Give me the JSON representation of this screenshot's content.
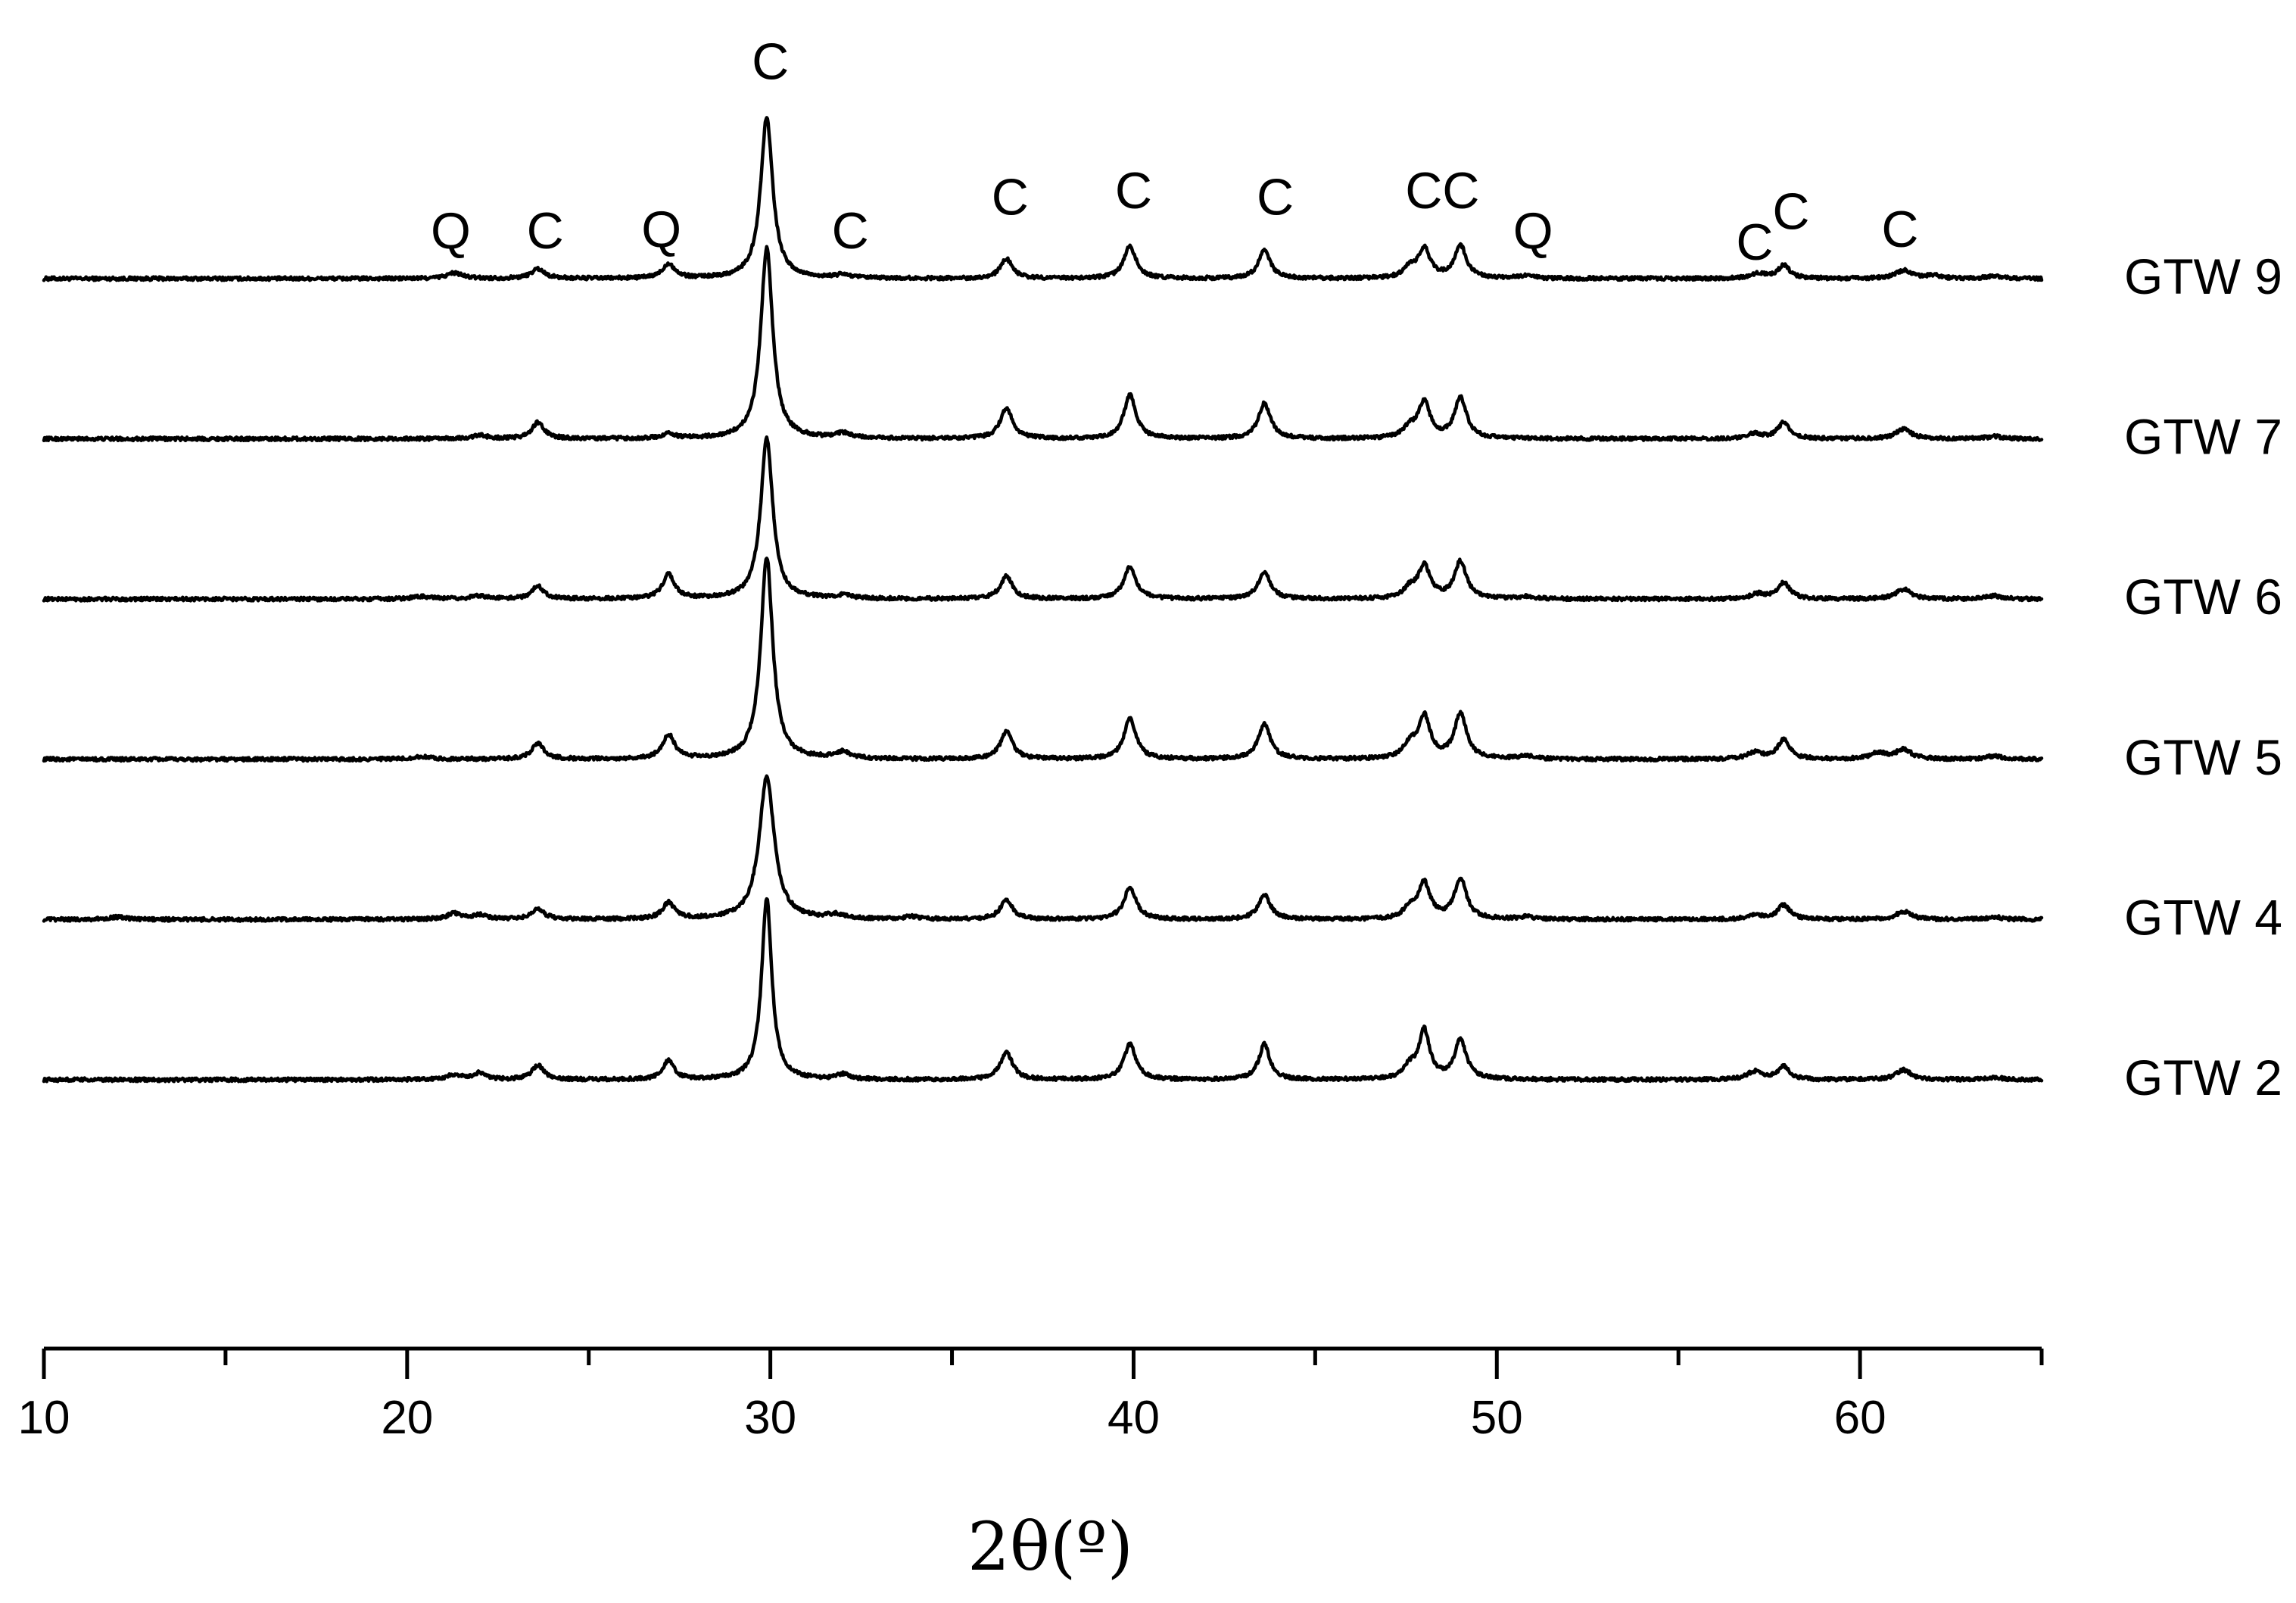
{
  "chart_data": {
    "type": "line",
    "xlabel": "2θ(º)",
    "ylabel": "",
    "title": "",
    "xlim": [
      10,
      65
    ],
    "x_ticks": [
      10,
      20,
      30,
      40,
      50,
      60
    ],
    "y_axis_visible": false,
    "grid": false,
    "legend": "none",
    "line_color": "#000000",
    "series": [
      {
        "name": "GTW 9",
        "baseline": 0,
        "peaks": [
          {
            "x": 21.3,
            "h": 0.035,
            "w": 0.25
          },
          {
            "x": 23.6,
            "h": 0.06,
            "w": 0.22
          },
          {
            "x": 27.2,
            "h": 0.09,
            "w": 0.2
          },
          {
            "x": 29.9,
            "h": 1.0,
            "w": 0.2
          },
          {
            "x": 32.0,
            "h": 0.02,
            "w": 0.25
          },
          {
            "x": 36.5,
            "h": 0.12,
            "w": 0.2
          },
          {
            "x": 39.9,
            "h": 0.2,
            "w": 0.2
          },
          {
            "x": 43.6,
            "h": 0.17,
            "w": 0.2
          },
          {
            "x": 47.6,
            "h": 0.06,
            "w": 0.2
          },
          {
            "x": 48.0,
            "h": 0.18,
            "w": 0.2
          },
          {
            "x": 49.0,
            "h": 0.2,
            "w": 0.2
          },
          {
            "x": 50.8,
            "h": 0.015,
            "w": 0.25
          },
          {
            "x": 57.2,
            "h": 0.03,
            "w": 0.25
          },
          {
            "x": 57.9,
            "h": 0.08,
            "w": 0.2
          },
          {
            "x": 61.2,
            "h": 0.05,
            "w": 0.25
          },
          {
            "x": 62.0,
            "h": 0.02,
            "w": 0.25
          },
          {
            "x": 63.7,
            "h": 0.015,
            "w": 0.25
          }
        ]
      },
      {
        "name": "GTW 7",
        "baseline": 1,
        "peaks": [
          {
            "x": 22.0,
            "h": 0.02,
            "w": 0.25
          },
          {
            "x": 23.6,
            "h": 0.1,
            "w": 0.2
          },
          {
            "x": 27.2,
            "h": 0.03,
            "w": 0.2
          },
          {
            "x": 29.9,
            "h": 1.18,
            "w": 0.2
          },
          {
            "x": 32.0,
            "h": 0.03,
            "w": 0.25
          },
          {
            "x": 36.5,
            "h": 0.19,
            "w": 0.2
          },
          {
            "x": 39.9,
            "h": 0.27,
            "w": 0.2
          },
          {
            "x": 43.6,
            "h": 0.22,
            "w": 0.2
          },
          {
            "x": 47.6,
            "h": 0.06,
            "w": 0.2
          },
          {
            "x": 48.0,
            "h": 0.22,
            "w": 0.2
          },
          {
            "x": 49.0,
            "h": 0.25,
            "w": 0.2
          },
          {
            "x": 57.1,
            "h": 0.03,
            "w": 0.25
          },
          {
            "x": 57.9,
            "h": 0.1,
            "w": 0.2
          },
          {
            "x": 61.2,
            "h": 0.06,
            "w": 0.25
          },
          {
            "x": 63.7,
            "h": 0.015,
            "w": 0.25
          }
        ]
      },
      {
        "name": "GTW 6",
        "baseline": 2,
        "peaks": [
          {
            "x": 20.4,
            "h": 0.015,
            "w": 0.3
          },
          {
            "x": 22.0,
            "h": 0.02,
            "w": 0.25
          },
          {
            "x": 23.6,
            "h": 0.08,
            "w": 0.2
          },
          {
            "x": 27.2,
            "h": 0.15,
            "w": 0.2
          },
          {
            "x": 29.9,
            "h": 1.0,
            "w": 0.2
          },
          {
            "x": 32.0,
            "h": 0.02,
            "w": 0.25
          },
          {
            "x": 36.5,
            "h": 0.14,
            "w": 0.2
          },
          {
            "x": 39.9,
            "h": 0.2,
            "w": 0.2
          },
          {
            "x": 43.6,
            "h": 0.17,
            "w": 0.2
          },
          {
            "x": 47.6,
            "h": 0.06,
            "w": 0.2
          },
          {
            "x": 48.0,
            "h": 0.2,
            "w": 0.2
          },
          {
            "x": 49.0,
            "h": 0.23,
            "w": 0.2
          },
          {
            "x": 50.8,
            "h": 0.015,
            "w": 0.25
          },
          {
            "x": 57.2,
            "h": 0.03,
            "w": 0.25
          },
          {
            "x": 57.9,
            "h": 0.1,
            "w": 0.2
          },
          {
            "x": 61.2,
            "h": 0.06,
            "w": 0.25
          },
          {
            "x": 63.7,
            "h": 0.02,
            "w": 0.25
          }
        ]
      },
      {
        "name": "GTW 5",
        "baseline": 3,
        "peaks": [
          {
            "x": 20.4,
            "h": 0.015,
            "w": 0.3
          },
          {
            "x": 23.6,
            "h": 0.1,
            "w": 0.2
          },
          {
            "x": 27.2,
            "h": 0.15,
            "w": 0.2
          },
          {
            "x": 29.9,
            "h": 1.25,
            "w": 0.2
          },
          {
            "x": 32.0,
            "h": 0.04,
            "w": 0.25
          },
          {
            "x": 36.5,
            "h": 0.17,
            "w": 0.2
          },
          {
            "x": 39.9,
            "h": 0.25,
            "w": 0.2
          },
          {
            "x": 43.6,
            "h": 0.22,
            "w": 0.2
          },
          {
            "x": 47.6,
            "h": 0.08,
            "w": 0.2
          },
          {
            "x": 48.0,
            "h": 0.26,
            "w": 0.2
          },
          {
            "x": 49.0,
            "h": 0.28,
            "w": 0.2
          },
          {
            "x": 50.8,
            "h": 0.02,
            "w": 0.25
          },
          {
            "x": 57.1,
            "h": 0.04,
            "w": 0.25
          },
          {
            "x": 57.9,
            "h": 0.12,
            "w": 0.2
          },
          {
            "x": 60.5,
            "h": 0.04,
            "w": 0.25
          },
          {
            "x": 61.2,
            "h": 0.06,
            "w": 0.25
          },
          {
            "x": 63.7,
            "h": 0.02,
            "w": 0.25
          }
        ]
      },
      {
        "name": "GTW 4",
        "baseline": 4,
        "peaks": [
          {
            "x": 12.0,
            "h": 0.015,
            "w": 0.3
          },
          {
            "x": 21.3,
            "h": 0.035,
            "w": 0.25
          },
          {
            "x": 22.0,
            "h": 0.025,
            "w": 0.25
          },
          {
            "x": 23.6,
            "h": 0.06,
            "w": 0.22
          },
          {
            "x": 27.2,
            "h": 0.1,
            "w": 0.2
          },
          {
            "x": 29.9,
            "h": 0.88,
            "w": 0.25
          },
          {
            "x": 31.8,
            "h": 0.025,
            "w": 0.25
          },
          {
            "x": 33.9,
            "h": 0.015,
            "w": 0.25
          },
          {
            "x": 36.5,
            "h": 0.12,
            "w": 0.2
          },
          {
            "x": 39.9,
            "h": 0.2,
            "w": 0.2
          },
          {
            "x": 43.6,
            "h": 0.15,
            "w": 0.2
          },
          {
            "x": 47.6,
            "h": 0.06,
            "w": 0.2
          },
          {
            "x": 48.0,
            "h": 0.22,
            "w": 0.2
          },
          {
            "x": 49.0,
            "h": 0.25,
            "w": 0.2
          },
          {
            "x": 50.8,
            "h": 0.015,
            "w": 0.25
          },
          {
            "x": 57.1,
            "h": 0.025,
            "w": 0.25
          },
          {
            "x": 57.9,
            "h": 0.09,
            "w": 0.2
          },
          {
            "x": 61.2,
            "h": 0.05,
            "w": 0.25
          },
          {
            "x": 63.7,
            "h": 0.015,
            "w": 0.25
          }
        ]
      },
      {
        "name": "GTW 2",
        "baseline": 5,
        "peaks": [
          {
            "x": 21.3,
            "h": 0.03,
            "w": 0.25
          },
          {
            "x": 22.0,
            "h": 0.04,
            "w": 0.2
          },
          {
            "x": 23.6,
            "h": 0.09,
            "w": 0.2
          },
          {
            "x": 27.2,
            "h": 0.12,
            "w": 0.18
          },
          {
            "x": 29.9,
            "h": 1.12,
            "w": 0.17
          },
          {
            "x": 32.0,
            "h": 0.03,
            "w": 0.2
          },
          {
            "x": 36.5,
            "h": 0.17,
            "w": 0.2
          },
          {
            "x": 39.9,
            "h": 0.22,
            "w": 0.2
          },
          {
            "x": 43.6,
            "h": 0.22,
            "w": 0.18
          },
          {
            "x": 47.6,
            "h": 0.07,
            "w": 0.2
          },
          {
            "x": 48.0,
            "h": 0.3,
            "w": 0.18
          },
          {
            "x": 49.0,
            "h": 0.24,
            "w": 0.2
          },
          {
            "x": 57.1,
            "h": 0.05,
            "w": 0.25
          },
          {
            "x": 57.9,
            "h": 0.08,
            "w": 0.2
          },
          {
            "x": 61.2,
            "h": 0.06,
            "w": 0.25
          },
          {
            "x": 63.7,
            "h": 0.015,
            "w": 0.25
          }
        ]
      }
    ],
    "peak_annotations": [
      {
        "text": "Q",
        "x": 21.2,
        "y": 0.3
      },
      {
        "text": "C",
        "x": 23.8,
        "y": 0.3
      },
      {
        "text": "Q",
        "x": 27.0,
        "y": 0.31
      },
      {
        "text": "C",
        "x": 30.0,
        "y": 1.35
      },
      {
        "text": "C",
        "x": 32.2,
        "y": 0.3
      },
      {
        "text": "C",
        "x": 36.6,
        "y": 0.51
      },
      {
        "text": "C",
        "x": 40.0,
        "y": 0.55
      },
      {
        "text": "C",
        "x": 43.9,
        "y": 0.51
      },
      {
        "text": "CC",
        "x": 48.5,
        "y": 0.55
      },
      {
        "text": "Q",
        "x": 51.0,
        "y": 0.3
      },
      {
        "text": "C",
        "x": 57.1,
        "y": 0.23
      },
      {
        "text": "C",
        "x": 58.1,
        "y": 0.42
      },
      {
        "text": "C",
        "x": 61.1,
        "y": 0.31
      }
    ]
  }
}
